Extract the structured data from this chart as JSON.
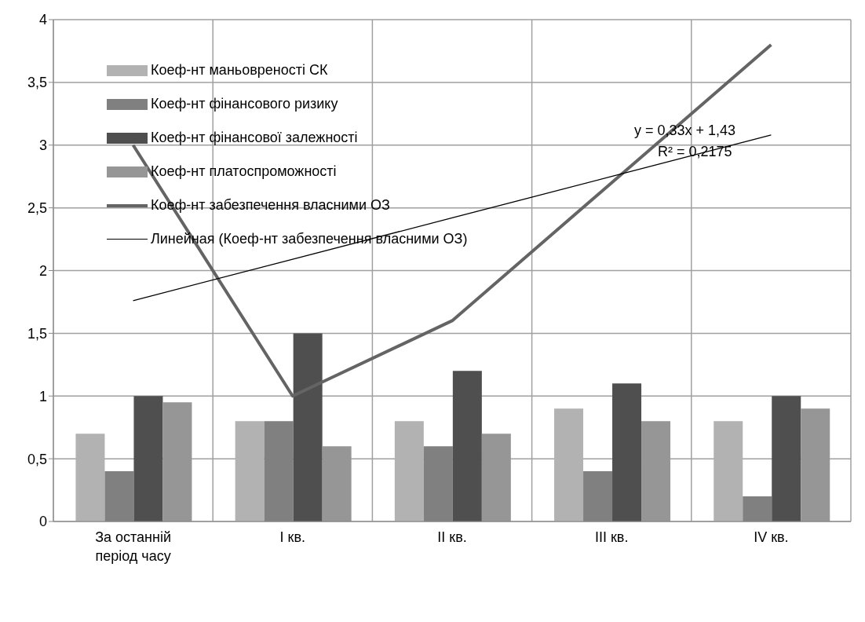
{
  "chart_data": {
    "type": "bar",
    "categories": [
      "За останній період часу",
      "I кв.",
      "II кв.",
      "III кв.",
      "IV кв."
    ],
    "series": [
      {
        "name": "Коеф-нт маньовреності СК",
        "color": "#b2b2b2",
        "values": [
          0.7,
          0.8,
          0.8,
          0.9,
          0.8
        ]
      },
      {
        "name": "Коеф-нт фінансового ризику",
        "color": "#808080",
        "values": [
          0.4,
          0.8,
          0.6,
          0.4,
          0.2
        ]
      },
      {
        "name": "Коеф-нт фінансової залежності",
        "color": "#4f4f4f",
        "values": [
          1,
          1.5,
          1.2,
          1.1,
          1
        ]
      },
      {
        "name": "Коеф-нт платоспроможності",
        "color": "#969696",
        "values": [
          0.95,
          0.6,
          0.7,
          0.8,
          0.9
        ]
      },
      {
        "name": "Коеф-нт забезпечення власними ОЗ",
        "type": "line",
        "color": "#646464",
        "values": [
          3,
          1,
          1.6,
          2.7,
          3.8
        ]
      },
      {
        "name": "Линейная (Коеф-нт забезпечення власними ОЗ)",
        "type": "line",
        "color": "#000000",
        "values": [
          1.76,
          2.09,
          2.42,
          2.75,
          3.08
        ]
      }
    ],
    "ylim": [
      0,
      4
    ],
    "yticks": [
      0,
      {
        "value": 0.5,
        "label": "0,5"
      },
      1,
      {
        "value": 1.5,
        "label": "1,5"
      },
      2,
      {
        "value": 2.5,
        "label": "2,5"
      },
      3,
      {
        "value": 3.5,
        "label": "3,5"
      },
      4
    ],
    "grid": true,
    "legend": "top left",
    "annotations": [
      "y = 0,33x + 1,43",
      "R² = 0,2175"
    ]
  }
}
